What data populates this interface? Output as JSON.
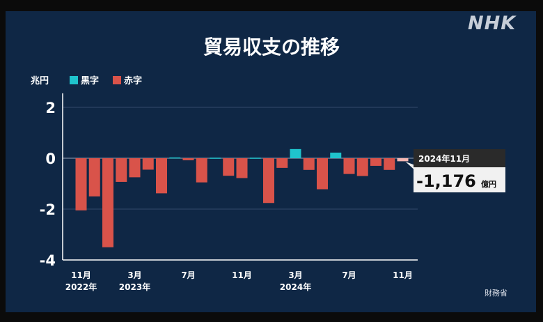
{
  "brand": "NHK",
  "chart_data": {
    "type": "bar",
    "title": "貿易収支の推移",
    "unit_label": "兆円",
    "legend": [
      {
        "name": "黒字",
        "color": "#1fc3cc"
      },
      {
        "name": "赤字",
        "color": "#d9534a"
      }
    ],
    "ylim": [
      -4,
      2.5
    ],
    "yticks": [
      2,
      0,
      -2,
      -4
    ],
    "months": [
      "2022-11",
      "2022-12",
      "2023-01",
      "2023-02",
      "2023-03",
      "2023-04",
      "2023-05",
      "2023-06",
      "2023-07",
      "2023-08",
      "2023-09",
      "2023-10",
      "2023-11",
      "2023-12",
      "2024-01",
      "2024-02",
      "2024-03",
      "2024-04",
      "2024-05",
      "2024-06",
      "2024-07",
      "2024-08",
      "2024-09",
      "2024-10",
      "2024-11"
    ],
    "values": [
      -2.05,
      -1.5,
      -3.5,
      -0.93,
      -0.75,
      -0.45,
      -1.38,
      0.03,
      -0.08,
      -0.95,
      0.02,
      -0.69,
      -0.78,
      0.02,
      -1.76,
      -0.38,
      0.36,
      -0.46,
      -1.22,
      0.22,
      -0.62,
      -0.7,
      -0.3,
      -0.46,
      -0.12
    ],
    "xtick_labels": [
      {
        "index": 0,
        "month": "11月",
        "year": "2022年"
      },
      {
        "index": 4,
        "month": "3月",
        "year": "2023年"
      },
      {
        "index": 8,
        "month": "7月",
        "year": ""
      },
      {
        "index": 12,
        "month": "11月",
        "year": ""
      },
      {
        "index": 16,
        "month": "3月",
        "year": "2024年"
      },
      {
        "index": 20,
        "month": "7月",
        "year": ""
      },
      {
        "index": 24,
        "month": "11月",
        "year": ""
      }
    ],
    "callout": {
      "date": "2024年11月",
      "value": "-1,176",
      "unit": "億円"
    },
    "grid": true
  },
  "source": "財務省"
}
